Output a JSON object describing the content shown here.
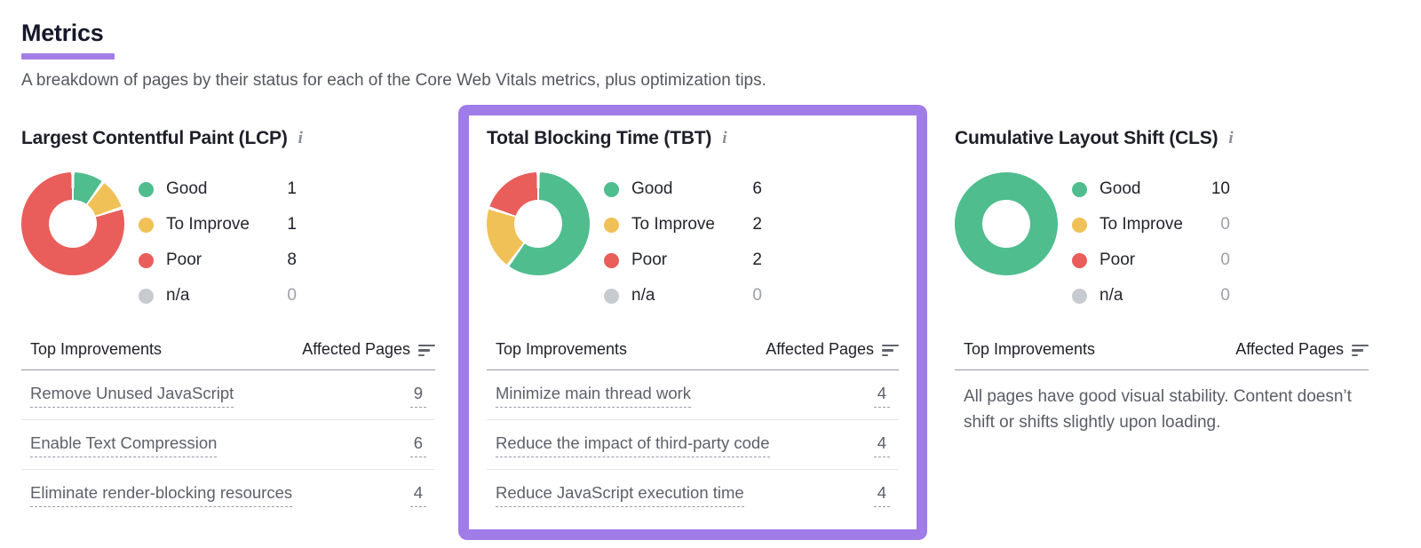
{
  "page": {
    "title": "Metrics",
    "subtitle": "A breakdown of pages by their status for each of the Core Web Vitals metrics, plus optimization tips."
  },
  "colors": {
    "good": "#4FBD8E",
    "to_improve": "#F0C156",
    "poor": "#E95D5A",
    "na": "#C7CACF",
    "highlight_purple": "#A07CE8",
    "title_underline_purple": "#A37EE6",
    "zero_value_gray": "#9EA0A9"
  },
  "cards": [
    {
      "id": "lcp",
      "title": "Largest Contentful Paint (LCP)",
      "info_icon": "i",
      "highlighted": false,
      "legend": [
        {
          "label": "Good",
          "value": 1,
          "color_key": "good"
        },
        {
          "label": "To Improve",
          "value": 1,
          "color_key": "to_improve"
        },
        {
          "label": "Poor",
          "value": 8,
          "color_key": "poor"
        },
        {
          "label": "n/a",
          "value": 0,
          "color_key": "na"
        }
      ],
      "table": {
        "headers": [
          "Top Improvements",
          "Affected Pages"
        ],
        "rows": [
          {
            "improvement": "Remove Unused JavaScript",
            "affected_pages": 9
          },
          {
            "improvement": "Enable Text Compression",
            "affected_pages": 6
          },
          {
            "improvement": "Eliminate render-blocking resources",
            "affected_pages": 4
          }
        ]
      }
    },
    {
      "id": "tbt",
      "title": "Total Blocking Time (TBT)",
      "info_icon": "i",
      "highlighted": true,
      "legend": [
        {
          "label": "Good",
          "value": 6,
          "color_key": "good"
        },
        {
          "label": "To Improve",
          "value": 2,
          "color_key": "to_improve"
        },
        {
          "label": "Poor",
          "value": 2,
          "color_key": "poor"
        },
        {
          "label": "n/a",
          "value": 0,
          "color_key": "na"
        }
      ],
      "table": {
        "headers": [
          "Top Improvements",
          "Affected Pages"
        ],
        "rows": [
          {
            "improvement": "Minimize main thread work",
            "affected_pages": 4
          },
          {
            "improvement": "Reduce the impact of third-party code",
            "affected_pages": 4
          },
          {
            "improvement": "Reduce JavaScript execution time",
            "affected_pages": 4
          }
        ]
      }
    },
    {
      "id": "cls",
      "title": "Cumulative Layout Shift (CLS)",
      "info_icon": "i",
      "highlighted": false,
      "legend": [
        {
          "label": "Good",
          "value": 10,
          "color_key": "good"
        },
        {
          "label": "To Improve",
          "value": 0,
          "color_key": "to_improve"
        },
        {
          "label": "Poor",
          "value": 0,
          "color_key": "poor"
        },
        {
          "label": "n/a",
          "value": 0,
          "color_key": "na"
        }
      ],
      "table": {
        "headers": [
          "Top Improvements",
          "Affected Pages"
        ],
        "rows": []
      },
      "empty_message": "All pages have good visual stability. Content doesn’t shift or shifts slightly upon loading."
    }
  ],
  "chart_data": [
    {
      "type": "pie",
      "subtype": "donut",
      "title": "Largest Contentful Paint (LCP)",
      "labels": [
        "Good",
        "To Improve",
        "Poor",
        "n/a"
      ],
      "values": [
        1,
        1,
        8,
        0
      ],
      "colors": [
        "#4FBD8E",
        "#F0C156",
        "#E95D5A",
        "#C7CACF"
      ],
      "legend_position": "right",
      "start_angle_deg": 0,
      "direction": "clockwise"
    },
    {
      "type": "pie",
      "subtype": "donut",
      "title": "Total Blocking Time (TBT)",
      "labels": [
        "Good",
        "To Improve",
        "Poor",
        "n/a"
      ],
      "values": [
        6,
        2,
        2,
        0
      ],
      "colors": [
        "#4FBD8E",
        "#F0C156",
        "#E95D5A",
        "#C7CACF"
      ],
      "legend_position": "right",
      "start_angle_deg": 0,
      "direction": "clockwise"
    },
    {
      "type": "pie",
      "subtype": "donut",
      "title": "Cumulative Layout Shift (CLS)",
      "labels": [
        "Good",
        "To Improve",
        "Poor",
        "n/a"
      ],
      "values": [
        10,
        0,
        0,
        0
      ],
      "colors": [
        "#4FBD8E",
        "#F0C156",
        "#E95D5A",
        "#C7CACF"
      ],
      "legend_position": "right",
      "start_angle_deg": 0,
      "direction": "clockwise"
    }
  ]
}
